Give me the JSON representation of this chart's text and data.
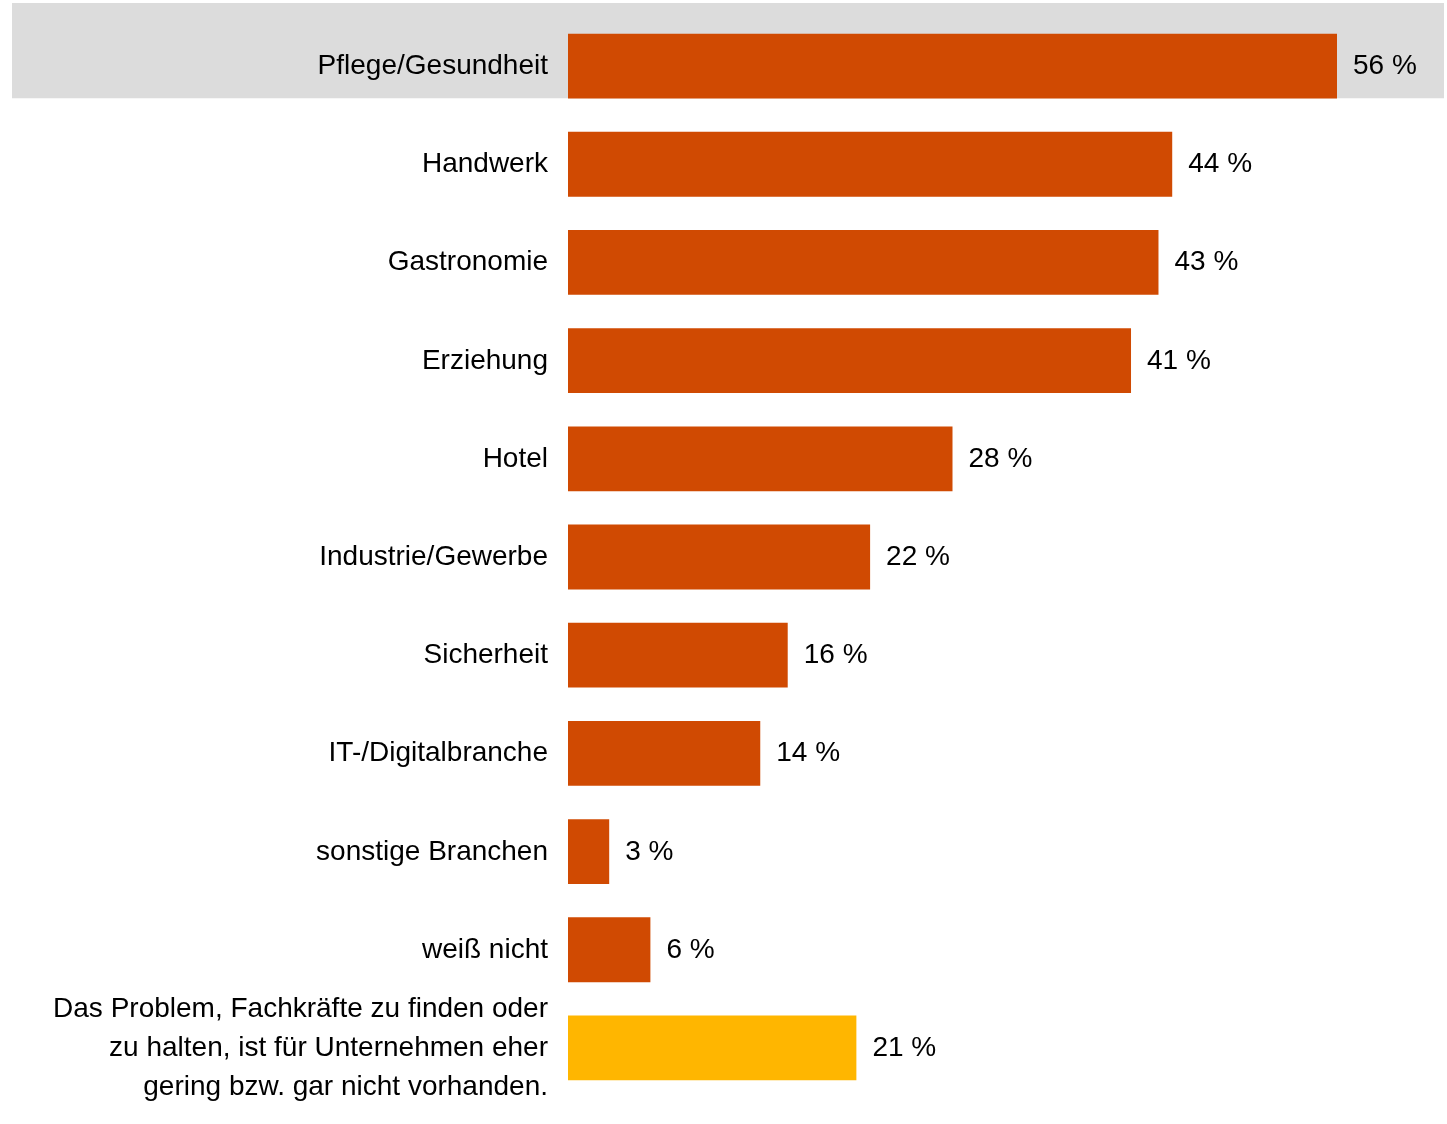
{
  "chart_data": {
    "type": "bar",
    "orientation": "horizontal",
    "categories": [
      "Pflege/Gesundheit",
      "Handwerk",
      "Gastronomie",
      "Erziehung",
      "Hotel",
      "Industrie/Gewerbe",
      "Sicherheit",
      "IT-/Digitalbranche",
      "sonstige Branchen",
      "weiß nicht",
      "Das Problem, Fachkräfte zu finden oder zu halten, ist für Unternehmen eher gering bzw. gar nicht vorhanden."
    ],
    "values": [
      56,
      44,
      43,
      41,
      28,
      22,
      16,
      14,
      3,
      6,
      21
    ],
    "value_labels": [
      "56 %",
      "44 %",
      "43 %",
      "41 %",
      "28 %",
      "22 %",
      "16 %",
      "14 %",
      "3 %",
      "6 %",
      "21 %"
    ],
    "colors": [
      "#d04a02",
      "#d04a02",
      "#d04a02",
      "#d04a02",
      "#d04a02",
      "#d04a02",
      "#d04a02",
      "#d04a02",
      "#d04a02",
      "#d04a02",
      "#ffb600"
    ],
    "bands": [
      {
        "axis": "y",
        "from": "Pflege/Gesundheit",
        "to": "Pflege/Gesundheit",
        "color": "#dcdcdc"
      }
    ]
  }
}
